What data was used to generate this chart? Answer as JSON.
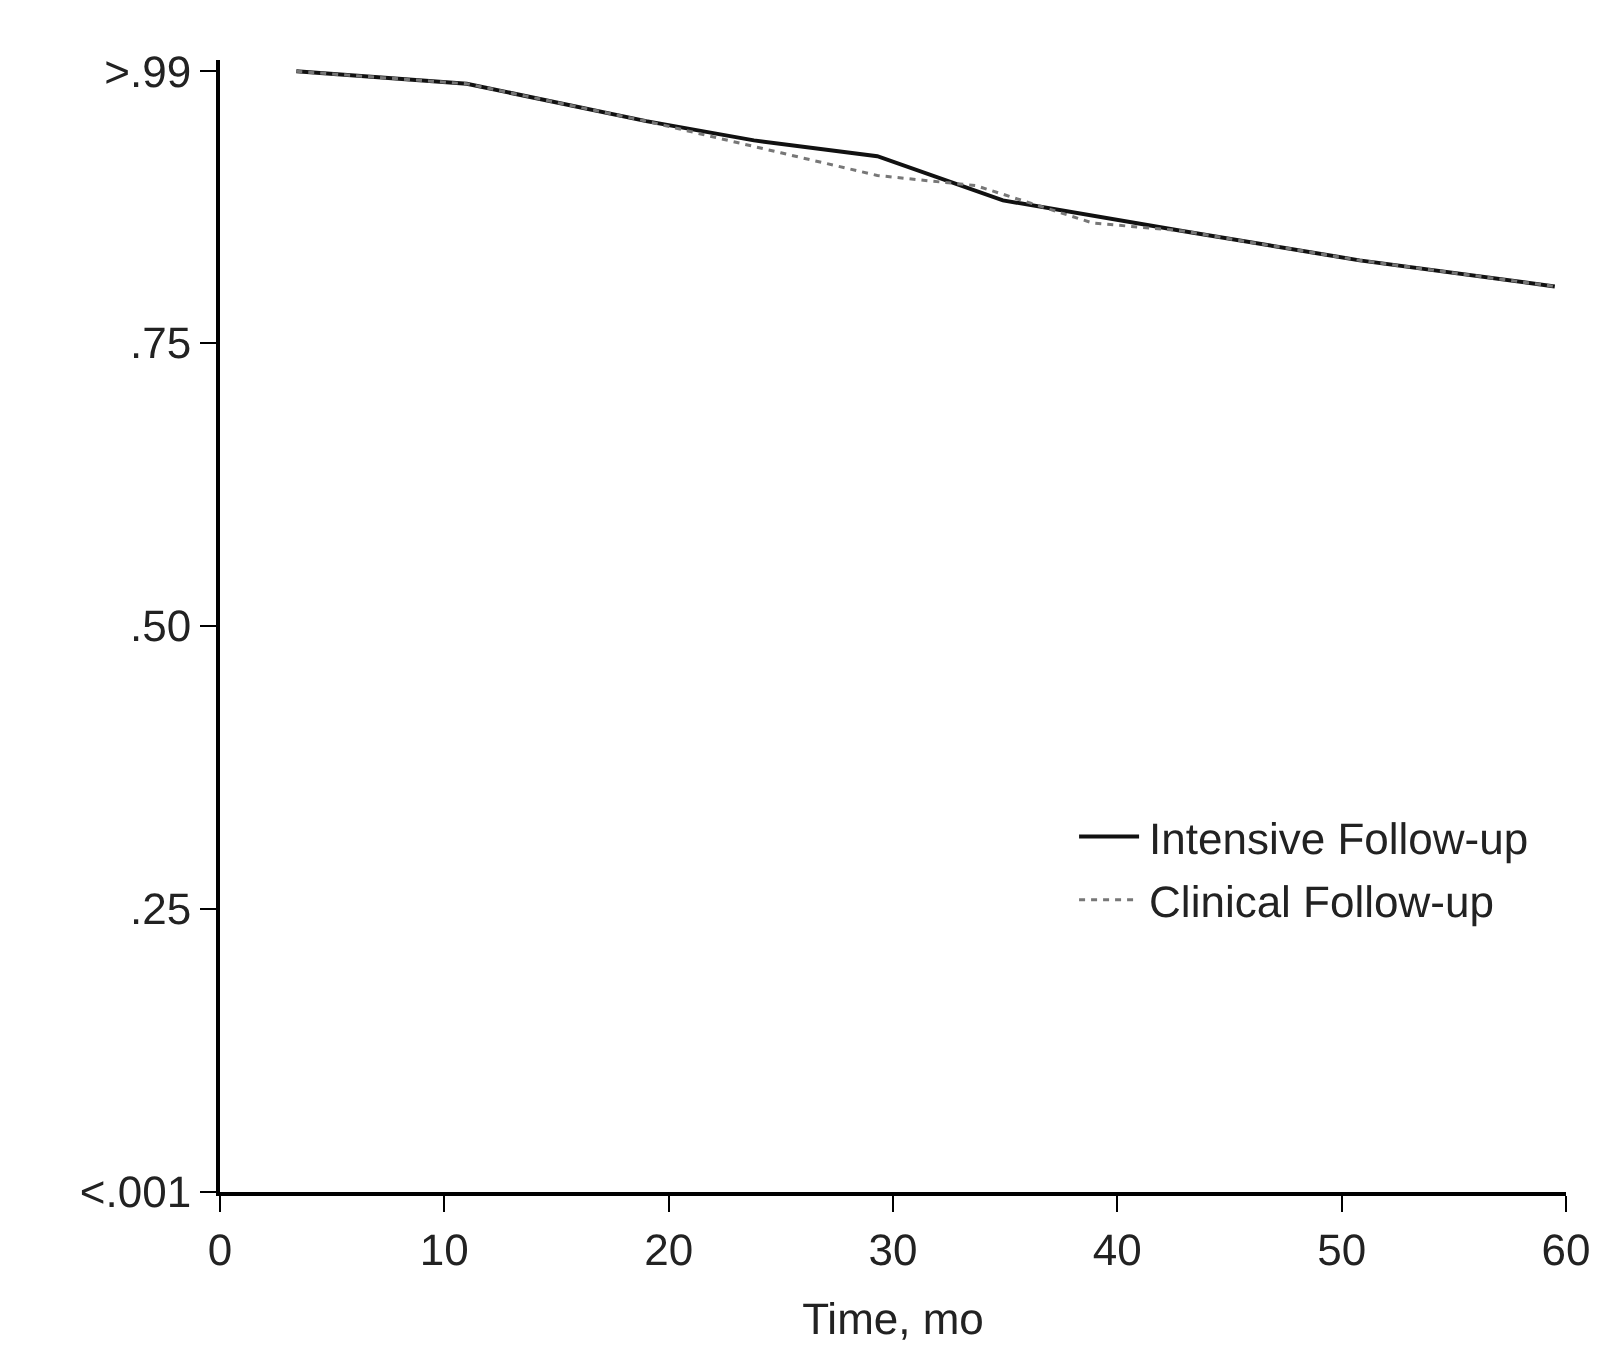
{
  "chart_data": {
    "type": "line",
    "xlabel": "Time, mo",
    "xlim": [
      0,
      60
    ],
    "xticks": [
      0,
      10,
      20,
      30,
      40,
      50,
      60
    ],
    "ylim": [
      0,
      1.0
    ],
    "yticks": [
      {
        "value": 0,
        "label": "<.001"
      },
      {
        "value": 0.25,
        "label": ".25"
      },
      {
        "value": 0.5,
        "label": ".50"
      },
      {
        "value": 0.75,
        "label": ".75"
      },
      {
        "value": 0.99,
        "label": ">.99"
      }
    ],
    "series": [
      {
        "name": "Intensive Follow-up",
        "color": "#111111",
        "line_style": "solid",
        "x": [
          3.4,
          11,
          19,
          23.8,
          29.3,
          34.9,
          42.9,
          50.8,
          59.5
        ],
        "values": [
          0.99,
          0.979,
          0.946,
          0.929,
          0.915,
          0.876,
          0.849,
          0.823,
          0.8
        ]
      },
      {
        "name": "Clinical Follow-up",
        "color": "#777777",
        "line_style": "dotted",
        "x": [
          3.4,
          11,
          19,
          25,
          29.3,
          33.7,
          38.9,
          42.9,
          50.8,
          59.5
        ],
        "values": [
          0.99,
          0.979,
          0.946,
          0.918,
          0.898,
          0.889,
          0.856,
          0.849,
          0.823,
          0.8
        ]
      }
    ],
    "legend": "bottom right"
  }
}
